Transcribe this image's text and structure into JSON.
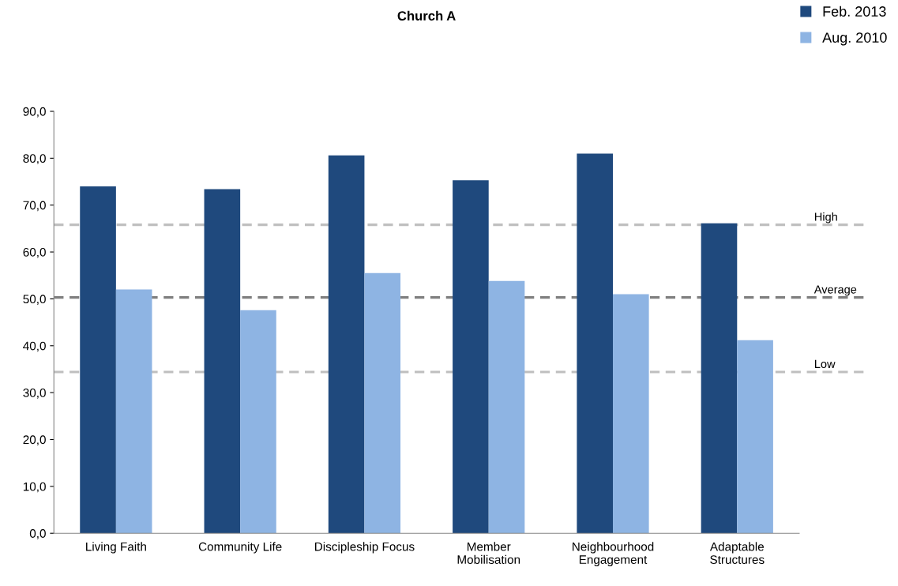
{
  "chart_data": {
    "type": "bar",
    "title": "Church A",
    "categories": [
      "Living Faith",
      "Community Life",
      "Discipleship Focus",
      "Member\nMobilisation",
      "Neighbourhood\nEngagement",
      "Adaptable\nStructures"
    ],
    "series": [
      {
        "name": "Feb. 2013",
        "color": "#1f497d",
        "values": [
          74.0,
          73.4,
          80.6,
          75.3,
          81.0,
          66.1
        ]
      },
      {
        "name": "Aug. 2010",
        "color": "#8eb4e3",
        "values": [
          52.0,
          47.6,
          55.5,
          53.8,
          51.0,
          41.2
        ]
      }
    ],
    "ylim": [
      0,
      90
    ],
    "yticks": [
      {
        "value": 0,
        "label": "0,0"
      },
      {
        "value": 10,
        "label": "10,0"
      },
      {
        "value": 20,
        "label": "20,0"
      },
      {
        "value": 30,
        "label": "30,0"
      },
      {
        "value": 40,
        "label": "40,0"
      },
      {
        "value": 50,
        "label": "50,0"
      },
      {
        "value": 60,
        "label": "60,0"
      },
      {
        "value": 70,
        "label": "70,0"
      },
      {
        "value": 80,
        "label": "80,0"
      },
      {
        "value": 90,
        "label": "90,0"
      }
    ],
    "ref_lines": [
      {
        "axis": "y",
        "value": 65.8,
        "label": "High",
        "color": "#bfbfbf",
        "line_style": "dashed"
      },
      {
        "axis": "y",
        "value": 50.3,
        "label": "Average",
        "color": "#7f7f7f",
        "line_style": "dashed"
      },
      {
        "axis": "y",
        "value": 34.4,
        "label": "Low",
        "color": "#bfbfbf",
        "line_style": "dashed"
      }
    ],
    "legend": "top right",
    "grid": false
  }
}
